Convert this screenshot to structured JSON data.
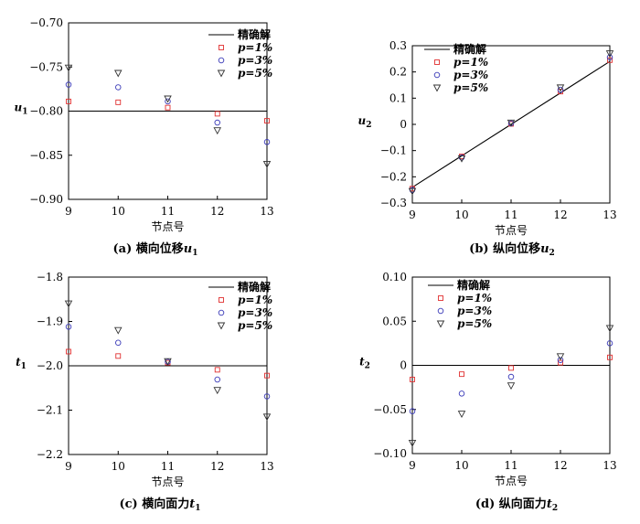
{
  "legend": {
    "exact": "精确解",
    "p1": "p=1%",
    "p3": "p=3%",
    "p5": "p=5%"
  },
  "colors": {
    "exact": "#000000",
    "p1": "#e03030",
    "p3": "#3a3ab8",
    "p5": "#333333"
  },
  "chart_data": [
    {
      "id": "a",
      "type": "scatter",
      "caption": "(a) 横向位移",
      "caption_var": "u",
      "caption_sub": "1",
      "xlabel": "节点号",
      "ylabel": "u",
      "ylabel_sub": "1",
      "x": [
        9,
        10,
        11,
        12,
        13
      ],
      "xlim": [
        9,
        13
      ],
      "ylim": [
        -0.9,
        -0.7
      ],
      "yticks": [
        -0.7,
        -0.75,
        -0.8,
        -0.85,
        -0.9
      ],
      "ytick_labels": [
        "−0.70",
        "−0.75",
        "−0.80",
        "−0.85",
        "−0.90"
      ],
      "exact": [
        -0.8,
        -0.8,
        -0.8,
        -0.8,
        -0.8
      ],
      "series": [
        {
          "name": "p=1%",
          "values": [
            -0.789,
            -0.79,
            -0.796,
            -0.803,
            -0.811
          ]
        },
        {
          "name": "p=3%",
          "values": [
            -0.77,
            -0.773,
            -0.789,
            -0.813,
            -0.835
          ]
        },
        {
          "name": "p=5%",
          "values": [
            -0.751,
            -0.757,
            -0.786,
            -0.822,
            -0.86
          ]
        }
      ]
    },
    {
      "id": "b",
      "type": "scatter",
      "caption": "(b) 纵向位移",
      "caption_var": "u",
      "caption_sub": "2",
      "xlabel": "节点号",
      "ylabel": "u",
      "ylabel_sub": "2",
      "x": [
        9,
        10,
        11,
        12,
        13
      ],
      "xlim": [
        9,
        13
      ],
      "ylim": [
        -0.3,
        0.3
      ],
      "yticks": [
        0.3,
        0.2,
        0.1,
        0,
        -0.1,
        -0.2,
        -0.3
      ],
      "ytick_labels": [
        "0.3",
        "0.2",
        "0.1",
        "0",
        "−0.1",
        "−0.2",
        "−0.3"
      ],
      "exact": [
        -0.24,
        -0.12,
        0.0,
        0.12,
        0.24
      ],
      "series": [
        {
          "name": "p=1%",
          "values": [
            -0.245,
            -0.122,
            0.002,
            0.125,
            0.245
          ]
        },
        {
          "name": "p=3%",
          "values": [
            -0.25,
            -0.126,
            0.004,
            0.132,
            0.256
          ]
        },
        {
          "name": "p=5%",
          "values": [
            -0.255,
            -0.13,
            0.006,
            0.14,
            0.27
          ]
        }
      ]
    },
    {
      "id": "c",
      "type": "scatter",
      "caption": "(c) 横向面力",
      "caption_var": "t",
      "caption_sub": "1",
      "xlabel": "节点号",
      "ylabel": "t",
      "ylabel_sub": "1",
      "x": [
        9,
        10,
        11,
        12,
        13
      ],
      "xlim": [
        9,
        13
      ],
      "ylim": [
        -2.2,
        -1.8
      ],
      "yticks": [
        -1.8,
        -1.9,
        -2.0,
        -2.1,
        -2.2
      ],
      "ytick_labels": [
        "−1.8",
        "−1.9",
        "−2.0",
        "−2.1",
        "−2.2"
      ],
      "exact": [
        -2.0,
        -2.0,
        -2.0,
        -2.0,
        -2.0
      ],
      "series": [
        {
          "name": "p=1%",
          "values": [
            -1.968,
            -1.978,
            -1.993,
            -2.009,
            -2.022
          ]
        },
        {
          "name": "p=3%",
          "values": [
            -1.912,
            -1.948,
            -1.991,
            -2.031,
            -2.069
          ]
        },
        {
          "name": "p=5%",
          "values": [
            -1.86,
            -1.92,
            -1.99,
            -2.055,
            -2.115
          ]
        }
      ]
    },
    {
      "id": "d",
      "type": "scatter",
      "caption": "(d) 纵向面力",
      "caption_var": "t",
      "caption_sub": "2",
      "xlabel": "节点号",
      "ylabel": "t",
      "ylabel_sub": "2",
      "x": [
        9,
        10,
        11,
        12,
        13
      ],
      "xlim": [
        9,
        13
      ],
      "ylim": [
        -0.1,
        0.1
      ],
      "yticks": [
        0.1,
        0.05,
        0,
        -0.05,
        -0.1
      ],
      "ytick_labels": [
        "0.10",
        "0.05",
        "0",
        "−0.05",
        "−0.10"
      ],
      "exact": [
        0,
        0,
        0,
        0,
        0
      ],
      "series": [
        {
          "name": "p=1%",
          "values": [
            -0.016,
            -0.01,
            -0.003,
            0.003,
            0.009
          ]
        },
        {
          "name": "p=3%",
          "values": [
            -0.052,
            -0.032,
            -0.013,
            0.006,
            0.025
          ]
        },
        {
          "name": "p=5%",
          "values": [
            -0.088,
            -0.055,
            -0.023,
            0.01,
            0.042
          ]
        }
      ]
    }
  ]
}
